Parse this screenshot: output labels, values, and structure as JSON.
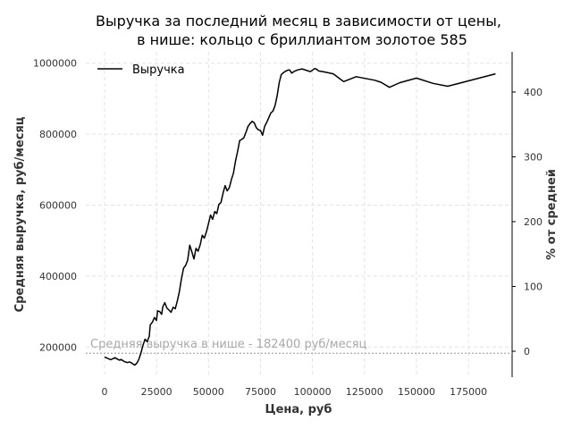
{
  "chart_data": {
    "type": "line",
    "title_line1": "Выручка за последний месяц в зависимости от цены,",
    "title_line2": "в нише: кольцо с бриллиантом золотое 585",
    "xlabel": "Цена, руб",
    "ylabel": "Средняя выручка, руб/месяц",
    "y2label": "% от средней",
    "xlim": [
      -9000,
      196000
    ],
    "ylim": [
      115000,
      1032000
    ],
    "y2lim": [
      -40,
      462
    ],
    "x_ticks": [
      0,
      25000,
      50000,
      75000,
      100000,
      125000,
      150000,
      175000
    ],
    "y_ticks": [
      200000,
      400000,
      600000,
      800000,
      1000000
    ],
    "y2_ticks": [
      0,
      100,
      200,
      300,
      400
    ],
    "grid": true,
    "legend": {
      "position": "upper-left",
      "entries": [
        "Выручка"
      ]
    },
    "reference_line": {
      "y": 182400,
      "label": "Средняя выручка в нише - 182400 руб/месяц",
      "color": "#a9a9a9"
    },
    "series": [
      {
        "name": "Выручка",
        "color": "#000000",
        "x": [
          0,
          3000,
          5000,
          7000,
          8000,
          9500,
          11000,
          12000,
          13000,
          14500,
          15500,
          16500,
          17500,
          18500,
          19500,
          20500,
          21500,
          22000,
          23000,
          24000,
          25000,
          25500,
          26500,
          27500,
          28000,
          29000,
          30000,
          31000,
          32000,
          33000,
          34000,
          35000,
          36000,
          37000,
          38000,
          39000,
          40000,
          41000,
          42000,
          43000,
          44000,
          45000,
          46000,
          47000,
          48000,
          49000,
          50000,
          51000,
          52000,
          53000,
          54000,
          55000,
          56000,
          57000,
          58000,
          59000,
          60000,
          61000,
          62000,
          63000,
          64000,
          65000,
          66000,
          67000,
          68000,
          69000,
          70000,
          71000,
          72000,
          73000,
          74000,
          75000,
          76000,
          77000,
          78000,
          79000,
          80000,
          81000,
          82000,
          83000,
          84000,
          85000,
          86000,
          87000,
          88000,
          89000,
          90000,
          91000,
          92000,
          93000,
          95000,
          97000,
          99000,
          101000,
          102000,
          103000,
          106000,
          110000,
          115000,
          121000,
          130000,
          133000,
          137000,
          142000,
          150000,
          158000,
          165000,
          175000,
          188000
        ],
        "y": [
          172000,
          164000,
          170000,
          163000,
          165000,
          159000,
          156000,
          158000,
          155000,
          149000,
          154000,
          165000,
          183000,
          205000,
          222000,
          215000,
          230000,
          262000,
          270000,
          283000,
          275000,
          302000,
          300000,
          292000,
          313000,
          325000,
          310000,
          304000,
          298000,
          312000,
          308000,
          330000,
          356000,
          392000,
          422000,
          430000,
          445000,
          487000,
          468000,
          448000,
          478000,
          470000,
          488000,
          515000,
          507000,
          525000,
          548000,
          572000,
          560000,
          582000,
          576000,
          602000,
          607000,
          634000,
          655000,
          640000,
          649000,
          672000,
          690000,
          724000,
          752000,
          782000,
          785000,
          790000,
          805000,
          822000,
          830000,
          836000,
          832000,
          818000,
          812000,
          810000,
          797000,
          822000,
          833000,
          847000,
          860000,
          865000,
          880000,
          908000,
          945000,
          968000,
          973000,
          977000,
          980000,
          981000,
          972000,
          976000,
          979000,
          981000,
          984000,
          980000,
          976000,
          985000,
          983000,
          978000,
          975000,
          970000,
          948000,
          962000,
          952000,
          946000,
          932000,
          945000,
          958000,
          943000,
          935000,
          950000,
          970000
        ]
      }
    ]
  }
}
